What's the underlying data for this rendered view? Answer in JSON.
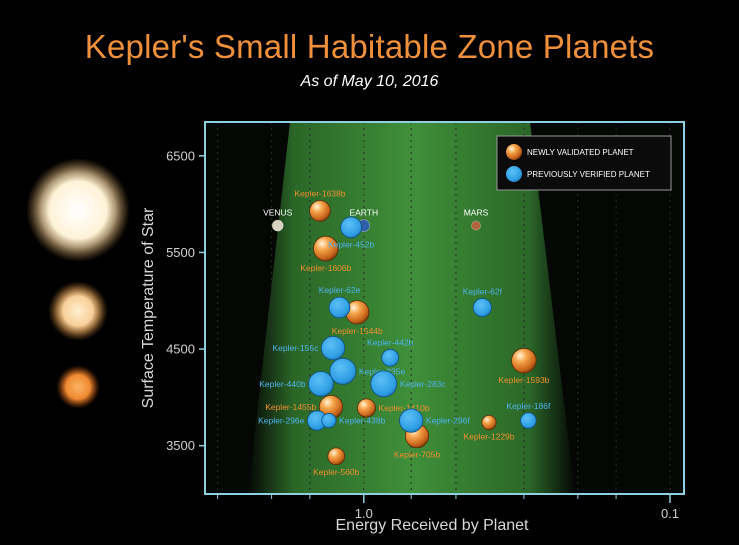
{
  "header": {
    "title": "Kepler's Small Habitable Zone Planets",
    "subtitle": "As of May 10, 2016"
  },
  "colors": {
    "newly_validated": "#f0902e",
    "previously_verified": "#3aa8ea",
    "zone_green": "#3f9b3a",
    "frame": "#8ecfe0"
  },
  "chart_data": {
    "type": "scatter",
    "xlabel": "Energy Received by Planet",
    "ylabel": "Surface Temperature of Star",
    "x_scale": "log",
    "x_reversed": true,
    "xlim": [
      3.3,
      0.09
    ],
    "ylim": [
      3000,
      6850
    ],
    "x_ticks": [
      {
        "value": 1.0,
        "label": "1.0"
      },
      {
        "value": 0.1,
        "label": "0.1"
      }
    ],
    "y_ticks": [
      3500,
      4500,
      5500,
      6500
    ],
    "legend": {
      "position": "top-right",
      "entries": [
        {
          "label": "NEWLY VALIDATED PLANET",
          "color": "#f0902e"
        },
        {
          "label": "PREVIOUSLY VERIFIED PLANET",
          "color": "#3aa8ea"
        }
      ]
    },
    "reference_planets": [
      {
        "name": "VENUS",
        "x": 1.91,
        "y": 5778
      },
      {
        "name": "EARTH",
        "x": 1.0,
        "y": 5778
      },
      {
        "name": "MARS",
        "x": 0.43,
        "y": 5778
      }
    ],
    "series": [
      {
        "name": "NEWLY VALIDATED PLANET",
        "points": [
          {
            "name": "Kepler-1638b",
            "x": 1.39,
            "y": 5930,
            "size": 1.6
          },
          {
            "name": "Kepler-1606b",
            "x": 1.33,
            "y": 5540,
            "size": 1.9
          },
          {
            "name": "Kepler-1544b",
            "x": 1.05,
            "y": 4880,
            "size": 1.8
          },
          {
            "name": "Kepler-1593b",
            "x": 0.3,
            "y": 4380,
            "size": 1.9
          },
          {
            "name": "Kepler-1455b",
            "x": 1.28,
            "y": 3900,
            "size": 1.8
          },
          {
            "name": "Kepler-1410b",
            "x": 0.98,
            "y": 3890,
            "size": 1.4
          },
          {
            "name": "Kepler-1229b",
            "x": 0.39,
            "y": 3740,
            "size": 1.1
          },
          {
            "name": "Kepler-705b",
            "x": 0.67,
            "y": 3600,
            "size": 1.8
          },
          {
            "name": "Kepler-560b",
            "x": 1.23,
            "y": 3390,
            "size": 1.3
          }
        ]
      },
      {
        "name": "PREVIOUSLY VERIFIED PLANET",
        "points": [
          {
            "name": "Kepler-452b",
            "x": 1.1,
            "y": 5760,
            "size": 1.6
          },
          {
            "name": "Kepler-62e",
            "x": 1.2,
            "y": 4930,
            "size": 1.6
          },
          {
            "name": "Kepler-62f",
            "x": 0.41,
            "y": 4930,
            "size": 1.4
          },
          {
            "name": "Kepler-155c",
            "x": 1.26,
            "y": 4510,
            "size": 1.8
          },
          {
            "name": "Kepler-442b",
            "x": 0.82,
            "y": 4410,
            "size": 1.3
          },
          {
            "name": "Kepler-235e",
            "x": 1.17,
            "y": 4270,
            "size": 2.0
          },
          {
            "name": "Kepler-440b",
            "x": 1.38,
            "y": 4140,
            "size": 1.9
          },
          {
            "name": "Kepler-283c",
            "x": 0.86,
            "y": 4140,
            "size": 2.0
          },
          {
            "name": "Kepler-296e",
            "x": 1.42,
            "y": 3760,
            "size": 1.5
          },
          {
            "name": "Kepler-438b",
            "x": 1.3,
            "y": 3760,
            "size": 1.1
          },
          {
            "name": "Kepler-296f",
            "x": 0.7,
            "y": 3760,
            "size": 1.8
          },
          {
            "name": "Kepler-186f",
            "x": 0.29,
            "y": 3760,
            "size": 1.2
          }
        ]
      }
    ]
  }
}
